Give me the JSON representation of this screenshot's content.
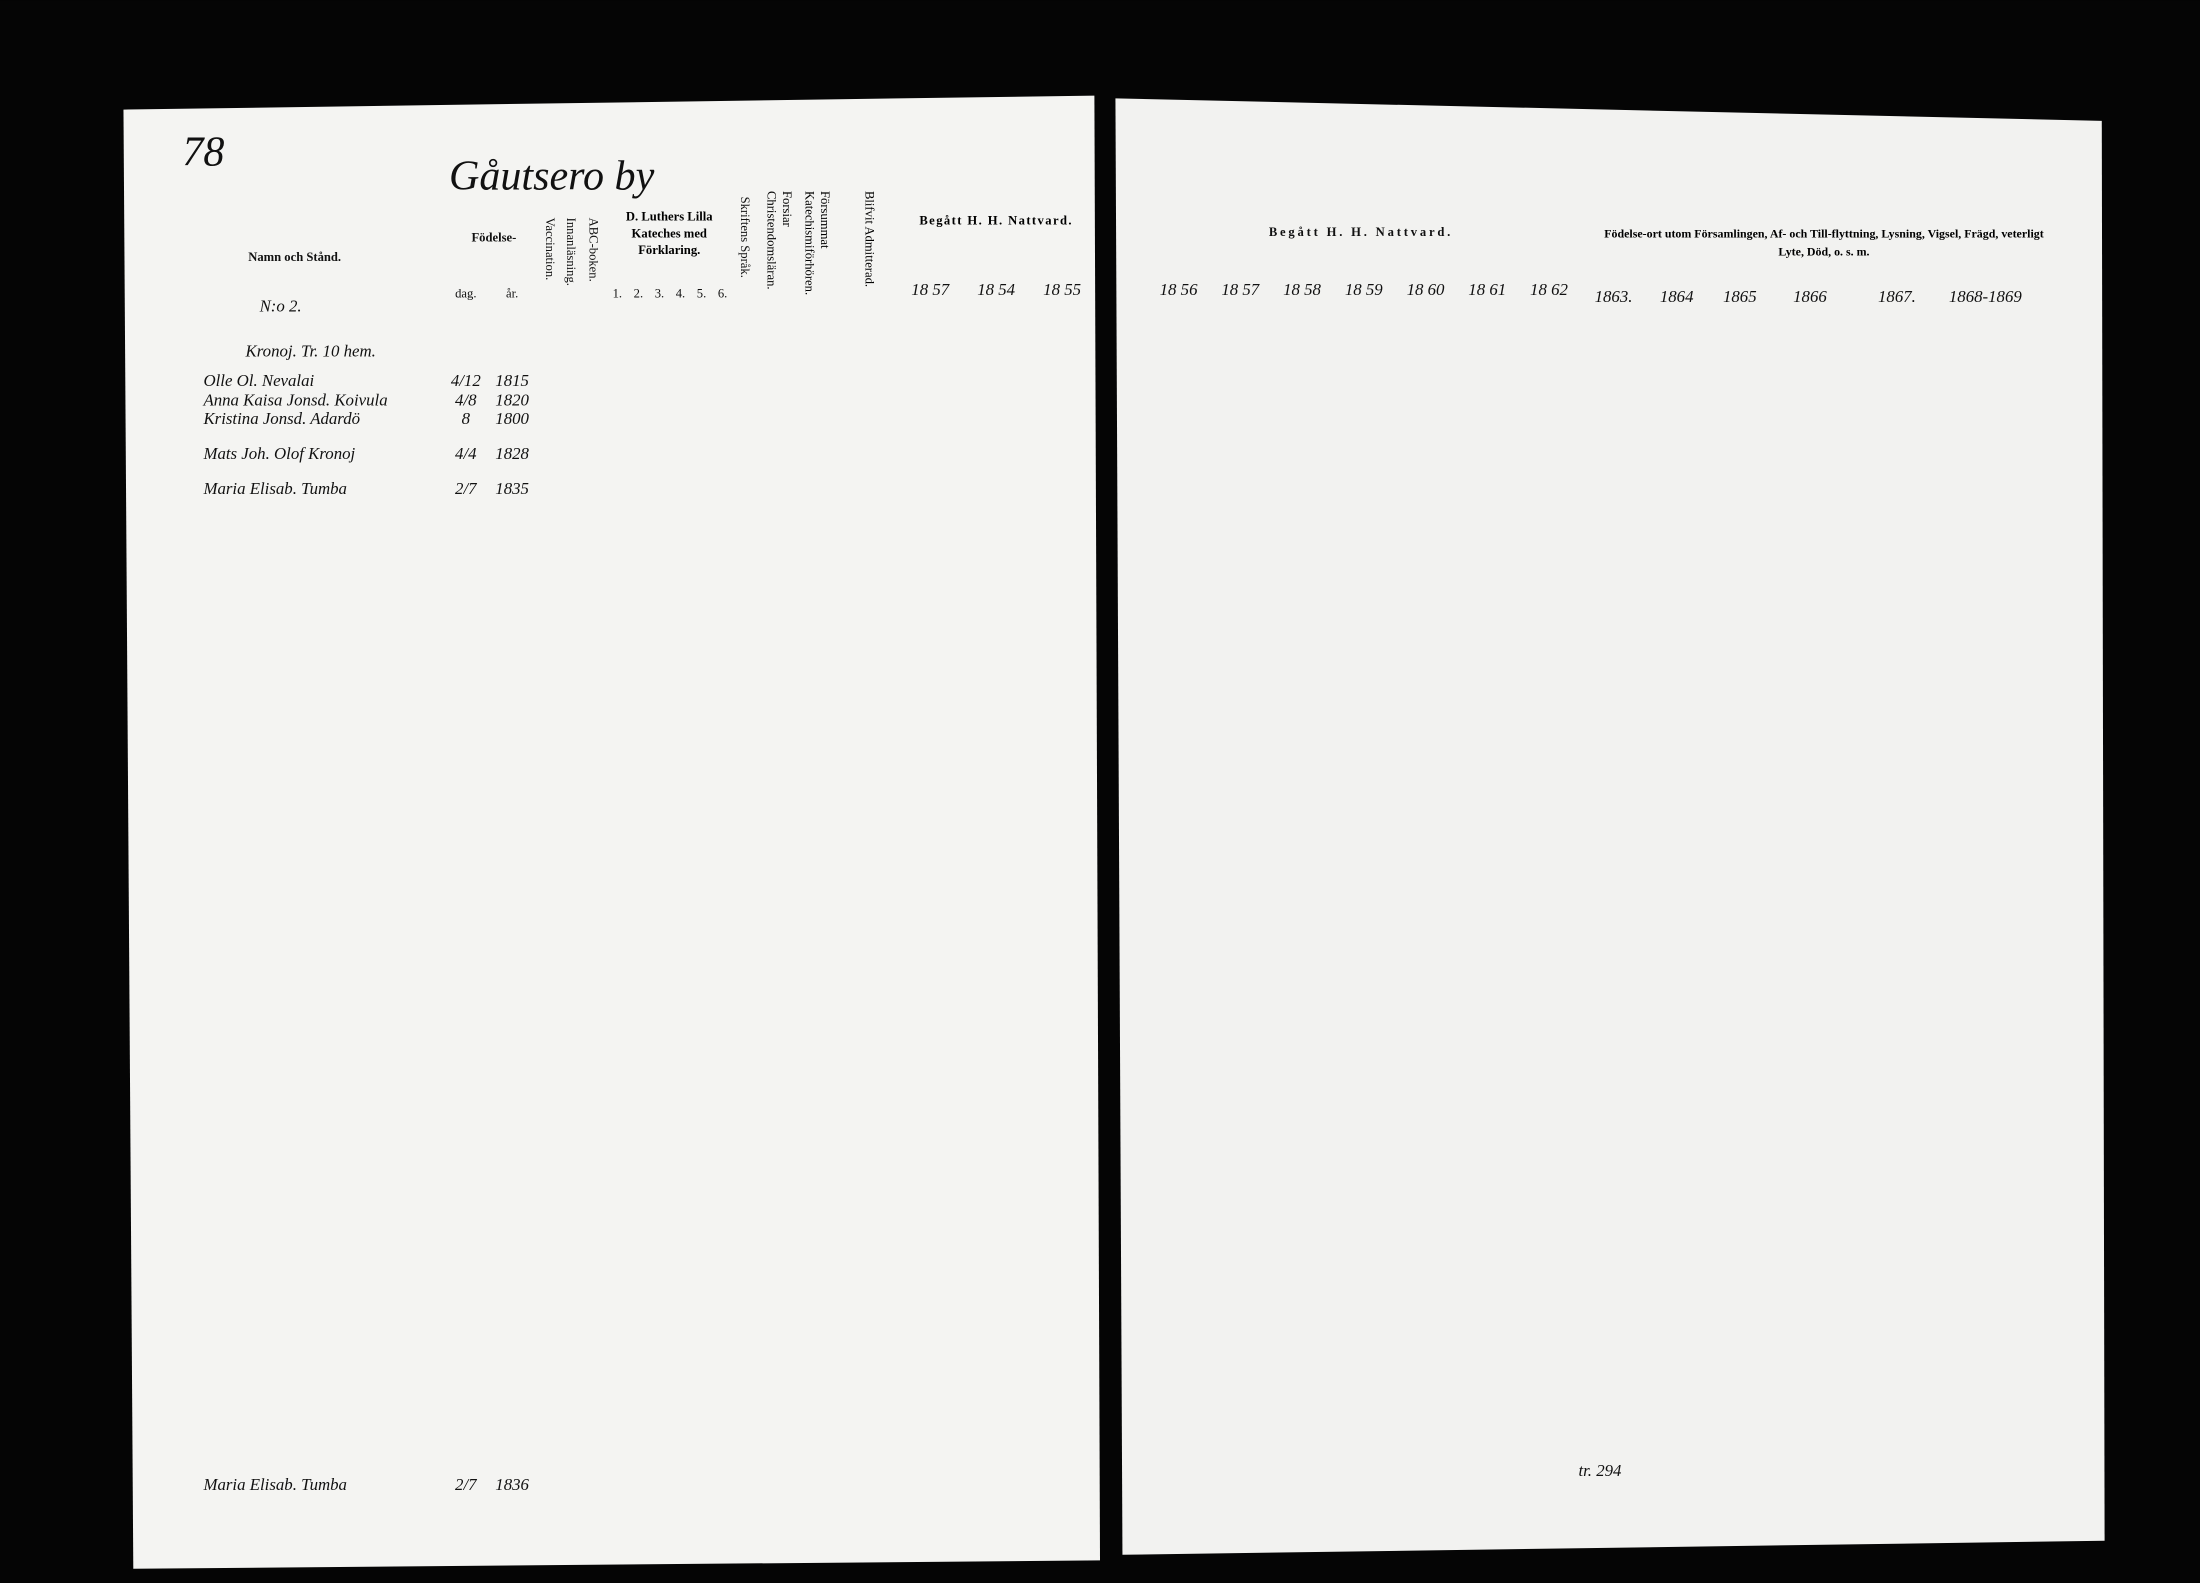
{
  "left_page": {
    "page_number": "78",
    "parish": "Gåutsero by",
    "headers": {
      "name": "Namn och Stånd.",
      "birth": "Födelse-",
      "birth_day": "dag.",
      "birth_year": "år.",
      "vaccination": "Vaccination.",
      "reading": "Innanläsning.",
      "abc": "ABC-boken.",
      "catechism": "D. Luthers Lilla Kateches med Förklaring.",
      "catechism_parts": [
        "1.",
        "2.",
        "3.",
        "4.",
        "5.",
        "6."
      ],
      "scripture": "Skriftens Språk.",
      "doctrine": "Forsiar Christendomsläran.",
      "missed": "Försummat Katechismiförhören.",
      "admitted": "Blifvit Admitterad.",
      "communion": "Begått H. H. Nattvard.",
      "years": [
        "18 57",
        "18 54",
        "18 55"
      ]
    }
  },
  "right_page": {
    "headers": {
      "communion": "Begått H. H. Nattvard.",
      "years": [
        "18 56",
        "18 57",
        "18 58",
        "18 59",
        "18 60",
        "18 61",
        "18 62"
      ],
      "remarks": "Födelse-ort utom Församlingen, Af- och Till-flyttning, Lysning, Vigsel, Frägd, veterligt Lyte, Död, o. s. m.",
      "remark_years": [
        "1863.",
        "1864",
        "1865",
        "1866",
        "1867.",
        "1868-1869"
      ]
    },
    "footnote": "tr. 294"
  },
  "household": {
    "number": "N:o 2.",
    "place": "Kronoj. Tr. 10 hem."
  },
  "entries": [
    {
      "name": "Olle Ol. Nevalai",
      "day": "4/12",
      "year": "1815"
    },
    {
      "name": "Anna Kaisa Jonsd. Koivula",
      "day": "4/8",
      "year": "1820"
    },
    {
      "name": "Kristina Jonsd. Adardö",
      "day": "8",
      "year": "1800"
    },
    {
      "name": "Mats Joh. Olof Kronoj",
      "day": "4/4",
      "year": "1828"
    },
    {
      "name": "Maria Elisab. Tumba",
      "day": "2/7",
      "year": "1835"
    },
    {
      "name": "Maria Elisab. Tumba",
      "day": "2/7",
      "year": "1836"
    }
  ]
}
